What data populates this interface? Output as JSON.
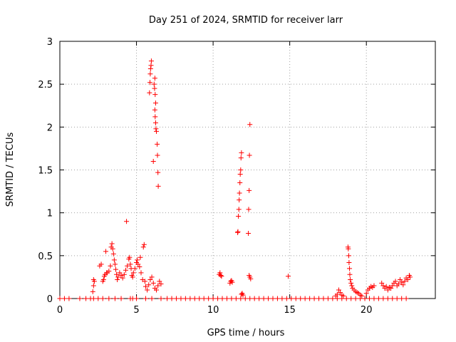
{
  "chart_data": {
    "type": "scatter",
    "title": "Day 251 of 2024, SRMTID for receiver larr",
    "xlabel": "GPS time / hours",
    "ylabel": "SRMTID / TECUs",
    "xlim": [
      0,
      24.5
    ],
    "ylim": [
      0,
      3
    ],
    "xticks": [
      0,
      5,
      10,
      15,
      20
    ],
    "yticks": [
      0,
      0.5,
      1,
      1.5,
      2,
      2.5,
      3
    ],
    "grid": true,
    "marker": "+",
    "series": [
      {
        "name": "SRMTID",
        "color": "#ff0000",
        "points": [
          [
            0.0,
            0.0
          ],
          [
            0.3,
            0.0
          ],
          [
            0.6,
            0.0
          ],
          [
            1.3,
            0.0
          ],
          [
            1.7,
            0.0
          ],
          [
            2.0,
            0.0
          ],
          [
            2.2,
            0.0
          ],
          [
            2.5,
            0.0
          ],
          [
            2.8,
            0.0
          ],
          [
            3.2,
            0.0
          ],
          [
            3.6,
            0.0
          ],
          [
            4.0,
            0.0
          ],
          [
            4.6,
            0.0
          ],
          [
            4.75,
            0.0
          ],
          [
            5.0,
            0.0
          ],
          [
            5.6,
            0.0
          ],
          [
            6.0,
            0.0
          ],
          [
            6.6,
            0.0
          ],
          [
            7.0,
            0.0
          ],
          [
            7.3,
            0.0
          ],
          [
            7.6,
            0.0
          ],
          [
            7.9,
            0.0
          ],
          [
            8.2,
            0.0
          ],
          [
            8.5,
            0.0
          ],
          [
            8.8,
            0.0
          ],
          [
            9.1,
            0.0
          ],
          [
            9.4,
            0.0
          ],
          [
            9.7,
            0.0
          ],
          [
            10.0,
            0.0
          ],
          [
            10.3,
            0.0
          ],
          [
            10.6,
            0.0
          ],
          [
            10.9,
            0.0
          ],
          [
            11.2,
            0.0
          ],
          [
            11.5,
            0.0
          ],
          [
            11.8,
            0.0
          ],
          [
            12.1,
            0.0
          ],
          [
            12.4,
            0.0
          ],
          [
            12.7,
            0.0
          ],
          [
            13.0,
            0.0
          ],
          [
            13.3,
            0.0
          ],
          [
            13.6,
            0.0
          ],
          [
            13.9,
            0.0
          ],
          [
            14.2,
            0.0
          ],
          [
            14.5,
            0.0
          ],
          [
            14.8,
            0.0
          ],
          [
            15.1,
            0.0
          ],
          [
            15.4,
            0.0
          ],
          [
            15.7,
            0.0
          ],
          [
            16.0,
            0.0
          ],
          [
            16.3,
            0.0
          ],
          [
            16.6,
            0.0
          ],
          [
            16.9,
            0.0
          ],
          [
            17.2,
            0.0
          ],
          [
            17.5,
            0.0
          ],
          [
            17.8,
            0.0
          ],
          [
            18.1,
            0.0
          ],
          [
            18.4,
            0.0
          ],
          [
            18.7,
            0.0
          ],
          [
            19.0,
            0.0
          ],
          [
            19.3,
            0.0
          ],
          [
            19.6,
            0.0
          ],
          [
            19.9,
            0.0
          ],
          [
            20.2,
            0.0
          ],
          [
            20.5,
            0.0
          ],
          [
            20.8,
            0.0
          ],
          [
            21.1,
            0.0
          ],
          [
            21.4,
            0.0
          ],
          [
            21.7,
            0.0
          ],
          [
            22.0,
            0.0
          ],
          [
            22.3,
            0.0
          ],
          [
            22.6,
            0.0
          ],
          [
            2.15,
            0.08
          ],
          [
            2.2,
            0.15
          ],
          [
            2.25,
            0.2
          ],
          [
            2.2,
            0.22
          ],
          [
            2.6,
            0.38
          ],
          [
            2.7,
            0.4
          ],
          [
            2.8,
            0.2
          ],
          [
            2.85,
            0.22
          ],
          [
            2.9,
            0.26
          ],
          [
            2.95,
            0.28
          ],
          [
            3.0,
            0.55
          ],
          [
            3.05,
            0.3
          ],
          [
            3.1,
            0.3
          ],
          [
            3.2,
            0.32
          ],
          [
            3.3,
            0.38
          ],
          [
            3.35,
            0.6
          ],
          [
            3.4,
            0.64
          ],
          [
            3.45,
            0.58
          ],
          [
            3.5,
            0.52
          ],
          [
            3.55,
            0.45
          ],
          [
            3.6,
            0.4
          ],
          [
            3.65,
            0.34
          ],
          [
            3.7,
            0.28
          ],
          [
            3.75,
            0.22
          ],
          [
            3.8,
            0.25
          ],
          [
            3.9,
            0.3
          ],
          [
            4.0,
            0.27
          ],
          [
            4.1,
            0.24
          ],
          [
            4.2,
            0.28
          ],
          [
            4.3,
            0.33
          ],
          [
            4.35,
            0.9
          ],
          [
            4.4,
            0.38
          ],
          [
            4.5,
            0.46
          ],
          [
            4.55,
            0.48
          ],
          [
            4.6,
            0.4
          ],
          [
            4.65,
            0.35
          ],
          [
            4.7,
            0.27
          ],
          [
            4.75,
            0.25
          ],
          [
            4.8,
            0.3
          ],
          [
            4.9,
            0.35
          ],
          [
            5.0,
            0.42
          ],
          [
            5.05,
            0.45
          ],
          [
            5.1,
            0.4
          ],
          [
            5.2,
            0.37
          ],
          [
            5.25,
            0.48
          ],
          [
            5.3,
            0.3
          ],
          [
            5.4,
            0.22
          ],
          [
            5.45,
            0.6
          ],
          [
            5.5,
            0.63
          ],
          [
            5.55,
            0.2
          ],
          [
            5.6,
            0.14
          ],
          [
            5.7,
            0.1
          ],
          [
            5.8,
            0.16
          ],
          [
            5.9,
            0.22
          ],
          [
            6.0,
            0.25
          ],
          [
            6.1,
            0.18
          ],
          [
            6.2,
            0.12
          ],
          [
            6.3,
            0.1
          ],
          [
            6.4,
            0.15
          ],
          [
            6.5,
            0.2
          ],
          [
            6.6,
            0.17
          ],
          [
            5.85,
            2.4
          ],
          [
            5.88,
            2.52
          ],
          [
            5.9,
            2.62
          ],
          [
            5.92,
            2.68
          ],
          [
            5.95,
            2.72
          ],
          [
            5.97,
            2.77
          ],
          [
            6.15,
            2.5
          ],
          [
            6.18,
            2.45
          ],
          [
            6.2,
            2.57
          ],
          [
            6.22,
            2.38
          ],
          [
            6.25,
            2.28
          ],
          [
            6.2,
            2.2
          ],
          [
            6.22,
            2.12
          ],
          [
            6.25,
            2.05
          ],
          [
            6.27,
            1.98
          ],
          [
            6.3,
            1.95
          ],
          [
            6.35,
            1.8
          ],
          [
            6.37,
            1.67
          ],
          [
            6.4,
            1.47
          ],
          [
            6.42,
            1.31
          ],
          [
            6.1,
            1.6
          ],
          [
            10.4,
            0.28
          ],
          [
            10.45,
            0.3
          ],
          [
            10.5,
            0.27
          ],
          [
            10.55,
            0.26
          ],
          [
            11.1,
            0.18
          ],
          [
            11.15,
            0.2
          ],
          [
            11.2,
            0.21
          ],
          [
            11.25,
            0.19
          ],
          [
            11.6,
            0.77
          ],
          [
            11.62,
            0.78
          ],
          [
            11.65,
            0.96
          ],
          [
            11.68,
            1.04
          ],
          [
            11.7,
            1.15
          ],
          [
            11.72,
            1.23
          ],
          [
            11.75,
            1.35
          ],
          [
            11.77,
            1.45
          ],
          [
            11.8,
            1.5
          ],
          [
            11.82,
            1.64
          ],
          [
            11.85,
            1.7
          ],
          [
            11.85,
            0.05
          ],
          [
            11.9,
            0.06
          ],
          [
            11.95,
            0.04
          ],
          [
            12.3,
            0.76
          ],
          [
            12.32,
            1.04
          ],
          [
            12.35,
            1.26
          ],
          [
            12.37,
            1.67
          ],
          [
            12.4,
            2.03
          ],
          [
            12.35,
            0.27
          ],
          [
            12.4,
            0.25
          ],
          [
            12.45,
            0.23
          ],
          [
            14.9,
            0.26
          ],
          [
            18.0,
            0.03
          ],
          [
            18.1,
            0.05
          ],
          [
            18.2,
            0.1
          ],
          [
            18.3,
            0.07
          ],
          [
            18.4,
            0.04
          ],
          [
            18.5,
            0.03
          ],
          [
            18.8,
            0.6
          ],
          [
            18.82,
            0.58
          ],
          [
            18.85,
            0.5
          ],
          [
            18.87,
            0.42
          ],
          [
            18.9,
            0.35
          ],
          [
            18.92,
            0.28
          ],
          [
            18.95,
            0.22
          ],
          [
            19.0,
            0.18
          ],
          [
            19.05,
            0.15
          ],
          [
            19.1,
            0.12
          ],
          [
            19.2,
            0.1
          ],
          [
            19.3,
            0.08
          ],
          [
            19.4,
            0.07
          ],
          [
            19.5,
            0.06
          ],
          [
            19.6,
            0.04
          ],
          [
            19.7,
            0.03
          ],
          [
            20.0,
            0.06
          ],
          [
            20.1,
            0.1
          ],
          [
            20.2,
            0.12
          ],
          [
            20.3,
            0.14
          ],
          [
            20.4,
            0.13
          ],
          [
            20.5,
            0.15
          ],
          [
            21.0,
            0.18
          ],
          [
            21.1,
            0.15
          ],
          [
            21.2,
            0.12
          ],
          [
            21.3,
            0.14
          ],
          [
            21.4,
            0.1
          ],
          [
            21.5,
            0.13
          ],
          [
            21.6,
            0.12
          ],
          [
            21.7,
            0.15
          ],
          [
            21.8,
            0.18
          ],
          [
            21.9,
            0.2
          ],
          [
            22.0,
            0.15
          ],
          [
            22.1,
            0.17
          ],
          [
            22.2,
            0.22
          ],
          [
            22.3,
            0.19
          ],
          [
            22.4,
            0.16
          ],
          [
            22.5,
            0.2
          ],
          [
            22.6,
            0.24
          ],
          [
            22.7,
            0.22
          ],
          [
            22.8,
            0.27
          ],
          [
            22.85,
            0.25
          ]
        ]
      }
    ]
  }
}
